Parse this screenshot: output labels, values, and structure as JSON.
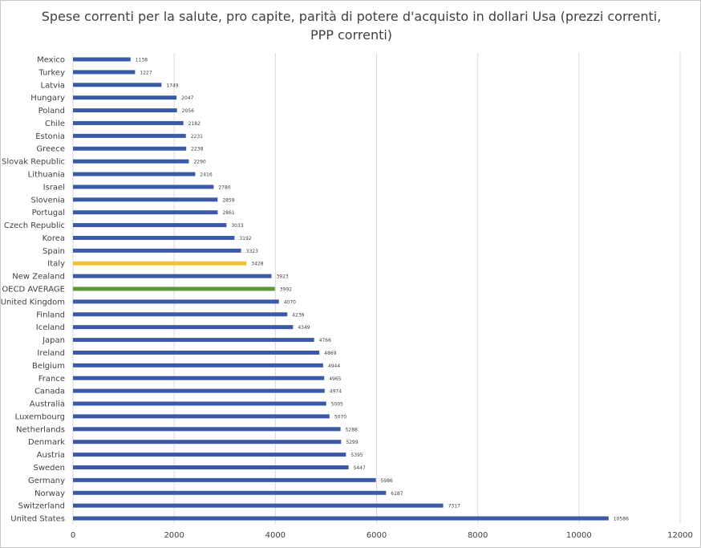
{
  "chart_data": {
    "type": "bar",
    "orientation": "horizontal",
    "title_line1": "Spese correnti per la salute, pro capite, parità di potere d'acquisto in dollari Usa (prezzi correnti,",
    "title_line2": "PPP correnti)",
    "xlim": [
      0,
      12000
    ],
    "x_ticks": [
      0,
      2000,
      4000,
      6000,
      8000,
      10000,
      12000
    ],
    "grid": true,
    "default_color": "#3a5aa8",
    "highlight_colors": {
      "Italy": "#f2c12e",
      "OECD AVERAGE": "#5a9a3c"
    },
    "categories": [
      "Mexico",
      "Turkey",
      "Latvia",
      "Hungary",
      "Poland",
      "Chile",
      "Estonia",
      "Greece",
      "Slovak Republic",
      "Lithuania",
      "Israel",
      "Slovenia",
      "Portugal",
      "Czech Republic",
      "Korea",
      "Spain",
      "Italy",
      "New Zealand",
      "OECD AVERAGE",
      "United Kingdom",
      "Finland",
      "Iceland",
      "Japan",
      "Ireland",
      "Belgium",
      "France",
      "Canada",
      "Australia",
      "Luxembourg",
      "Netherlands",
      "Denmark",
      "Austria",
      "Sweden",
      "Germany",
      "Norway",
      "Switzerland",
      "United States"
    ],
    "values": [
      1138,
      1227,
      1749,
      2047,
      2056,
      2182,
      2231,
      2238,
      2290,
      2416,
      2780,
      2859,
      2861,
      3033,
      3192,
      3323,
      3428,
      3923,
      3992,
      4070,
      4236,
      4349,
      4766,
      4869,
      4944,
      4965,
      4974,
      5005,
      5070,
      5288,
      5299,
      5395,
      5447,
      5986,
      6187,
      7317,
      10586
    ]
  }
}
